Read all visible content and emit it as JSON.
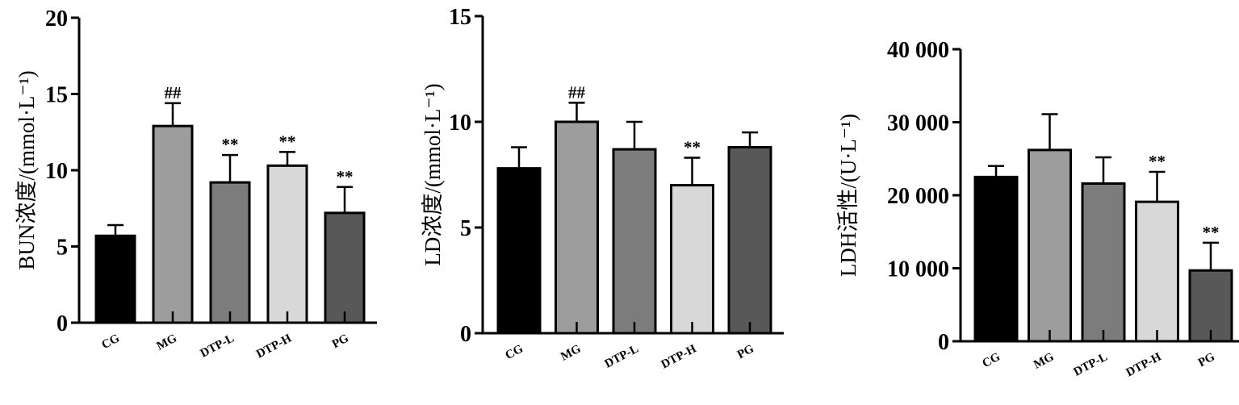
{
  "chart_data": [
    {
      "type": "bar",
      "ylabel": "BUN浓度/(mmol·L⁻¹)",
      "categories": [
        "CG",
        "MG",
        "DTP-L",
        "DTP-H",
        "PG"
      ],
      "values": [
        5.7,
        12.9,
        9.2,
        10.3,
        7.2
      ],
      "errors": [
        0.7,
        1.5,
        1.8,
        0.9,
        1.7
      ],
      "significance": [
        "",
        "##",
        "**",
        "**",
        "**"
      ],
      "ylim": [
        0,
        20
      ],
      "yticks": [
        0,
        5,
        10,
        15,
        20
      ],
      "ytick_labels": [
        "0",
        "5",
        "10",
        "15",
        "20"
      ],
      "colors": [
        "#000000",
        "#9d9d9d",
        "#7c7c7c",
        "#d8d8d8",
        "#585858"
      ],
      "grid": false
    },
    {
      "type": "bar",
      "ylabel": "LD浓度/(mmol·L⁻¹)",
      "categories": [
        "CG",
        "MG",
        "DTP-L",
        "DTP-H",
        "PG"
      ],
      "values": [
        7.8,
        10.0,
        8.7,
        7.0,
        8.8
      ],
      "errors": [
        1.0,
        0.9,
        1.3,
        1.3,
        0.7
      ],
      "significance": [
        "",
        "##",
        "",
        "**",
        ""
      ],
      "ylim": [
        0,
        15
      ],
      "yticks": [
        0,
        5,
        10,
        15
      ],
      "ytick_labels": [
        "0",
        "5",
        "10",
        "15"
      ],
      "colors": [
        "#000000",
        "#9d9d9d",
        "#7c7c7c",
        "#d8d8d8",
        "#585858"
      ],
      "grid": false
    },
    {
      "type": "bar",
      "ylabel": "LDH活性/(U·L⁻¹)",
      "categories": [
        "CG",
        "MG",
        "DTP-L",
        "DTP-H",
        "PG"
      ],
      "values": [
        22500,
        26200,
        21600,
        19100,
        9700
      ],
      "errors": [
        1500,
        4900,
        3600,
        4100,
        3800
      ],
      "significance": [
        "",
        "",
        "",
        "**",
        "**"
      ],
      "ylim": [
        0,
        40000
      ],
      "yticks": [
        0,
        10000,
        20000,
        30000,
        40000
      ],
      "ytick_labels": [
        "0",
        "10 000",
        "20 000",
        "30 000",
        "40 000"
      ],
      "colors": [
        "#000000",
        "#9d9d9d",
        "#7c7c7c",
        "#d8d8d8",
        "#585858"
      ],
      "grid": false
    }
  ]
}
